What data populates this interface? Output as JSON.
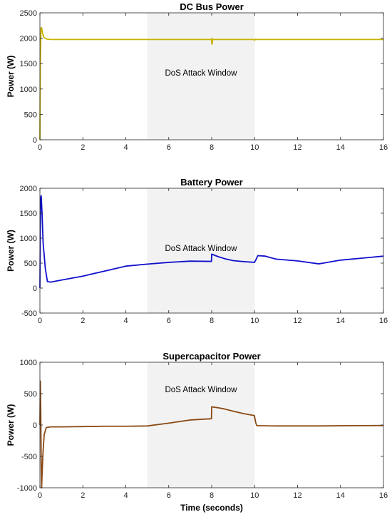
{
  "chart_data": [
    {
      "type": "line",
      "title": "DC Bus Power",
      "xlabel": "",
      "ylabel": "Power (W)",
      "xlim": [
        0,
        16
      ],
      "ylim": [
        0,
        2500
      ],
      "xticks": [
        0,
        2,
        4,
        6,
        8,
        10,
        12,
        14,
        16
      ],
      "yticks": [
        0,
        500,
        1000,
        1500,
        2000,
        2500
      ],
      "shaded_region": {
        "x": [
          5,
          10
        ],
        "label": "DoS Attack Window",
        "color": "#f2f2f2"
      },
      "grid": false,
      "series": [
        {
          "color": "#c8b400",
          "x": [
            0,
            0.02,
            0.05,
            0.08,
            0.12,
            0.18,
            0.3,
            0.5,
            1,
            2,
            4,
            5,
            7.99,
            8.0,
            8.01,
            8.02,
            8.05,
            8.1,
            9.95,
            10.0,
            10.05,
            10.1,
            12,
            14,
            16
          ],
          "y": [
            0,
            1500,
            2200,
            2210,
            2100,
            2020,
            1985,
            1975,
            1975,
            1975,
            1975,
            1975,
            1975,
            1900,
            2000,
            1880,
            1975,
            1975,
            1975,
            1960,
            1985,
            1975,
            1975,
            1975,
            1975
          ]
        }
      ]
    },
    {
      "type": "line",
      "title": "Battery Power",
      "xlabel": "",
      "ylabel": "Power (W)",
      "xlim": [
        0,
        16
      ],
      "ylim": [
        -500,
        2000
      ],
      "xticks": [
        0,
        2,
        4,
        6,
        8,
        10,
        12,
        14,
        16
      ],
      "yticks": [
        -500,
        0,
        500,
        1000,
        1500,
        2000
      ],
      "shaded_region": {
        "x": [
          5,
          10
        ],
        "label": "DoS Attack Window",
        "color": "#f2f2f2"
      },
      "grid": false,
      "series": [
        {
          "color": "#1010cc",
          "x": [
            0,
            0.03,
            0.06,
            0.1,
            0.15,
            0.25,
            0.35,
            0.5,
            1,
            2,
            3,
            4,
            5,
            6,
            7,
            7.99,
            8.0,
            8.3,
            8.6,
            9,
            9.5,
            9.99,
            10.0,
            10.05,
            10.15,
            10.5,
            11,
            12,
            13,
            14,
            15,
            16
          ],
          "y": [
            0,
            1800,
            1850,
            1500,
            900,
            400,
            130,
            120,
            160,
            240,
            340,
            440,
            480,
            515,
            540,
            535,
            680,
            630,
            590,
            550,
            530,
            515,
            520,
            560,
            650,
            640,
            580,
            545,
            485,
            560,
            600,
            640
          ]
        }
      ]
    },
    {
      "type": "line",
      "title": "Supercapacitor Power",
      "xlabel": "Time (seconds)",
      "ylabel": "Power (W)",
      "xlim": [
        0,
        16
      ],
      "ylim": [
        -1000,
        1000
      ],
      "xticks": [
        0,
        2,
        4,
        6,
        8,
        10,
        12,
        14,
        16
      ],
      "yticks": [
        -1000,
        -500,
        0,
        500,
        1000
      ],
      "shaded_region": {
        "x": [
          5,
          10
        ],
        "label": "DoS Attack Window",
        "color": "#f2f2f2"
      },
      "grid": false,
      "series": [
        {
          "color": "#8b4a14",
          "x": [
            0,
            0.02,
            0.04,
            0.06,
            0.08,
            0.1,
            0.15,
            0.2,
            0.3,
            0.5,
            1,
            2,
            3,
            4,
            5,
            6,
            7,
            7.99,
            8.0,
            8.3,
            8.6,
            9,
            9.5,
            9.99,
            10.0,
            10.05,
            10.1,
            11,
            12,
            13,
            14,
            15,
            16
          ],
          "y": [
            0,
            700,
            200,
            -600,
            -1000,
            -800,
            -400,
            -150,
            -40,
            -30,
            -30,
            -25,
            -20,
            -20,
            -15,
            30,
            80,
            100,
            290,
            275,
            255,
            220,
            180,
            150,
            130,
            40,
            -10,
            -15,
            -15,
            -15,
            -12,
            -10,
            -8
          ]
        }
      ]
    }
  ]
}
